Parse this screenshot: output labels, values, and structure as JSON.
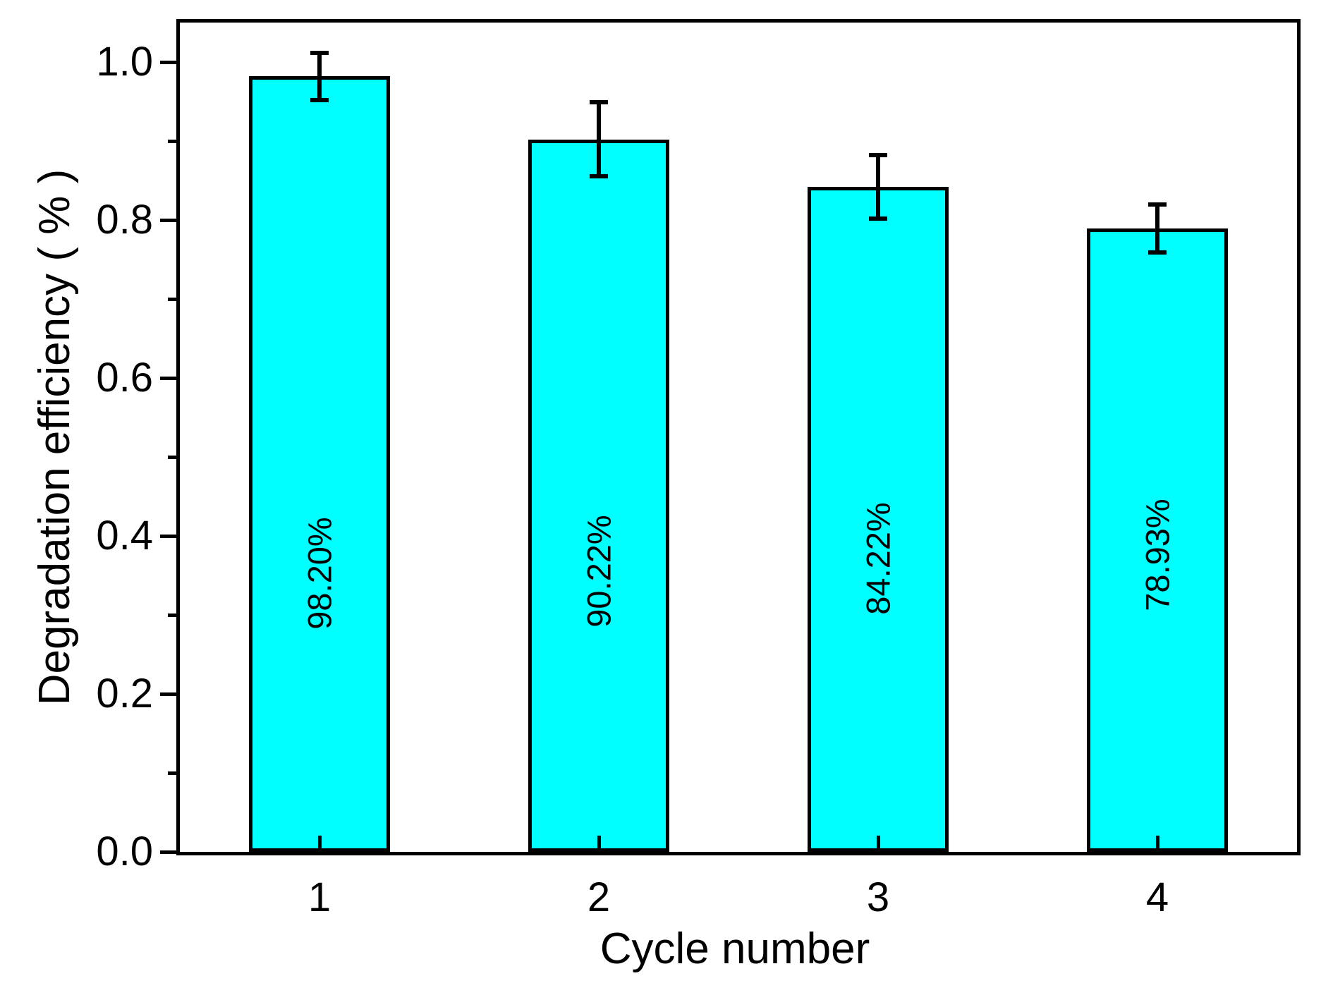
{
  "chart_data": {
    "type": "bar",
    "xlabel": "Cycle number",
    "ylabel": "Degradation efficiency ( % )",
    "categories": [
      "1",
      "2",
      "3",
      "4"
    ],
    "series": [
      {
        "name": "Degradation efficiency",
        "values": [
          0.982,
          0.9022,
          0.8422,
          0.7893
        ],
        "errors": [
          0.03,
          0.047,
          0.04,
          0.03
        ],
        "bar_labels": [
          "98.20%",
          "90.22%",
          "84.22%",
          "78.93%"
        ],
        "bar_label_y": [
          0.353,
          0.355,
          0.371,
          0.376
        ]
      }
    ],
    "ylim": [
      0,
      1.05
    ],
    "y_major_ticks": [
      0.0,
      0.2,
      0.4,
      0.6,
      0.8,
      1.0
    ],
    "y_major_tick_labels": [
      "0.0",
      "0.2",
      "0.4",
      "0.6",
      "0.8",
      "1.0"
    ],
    "y_minor_ticks": [
      0.1,
      0.3,
      0.5,
      0.7,
      0.9
    ],
    "grid": false,
    "legend_position": "none",
    "bar_color": "#00FFFF",
    "bar_border_color": "#000000",
    "axis_color": "#000000",
    "background_color": "#FFFFFF"
  }
}
